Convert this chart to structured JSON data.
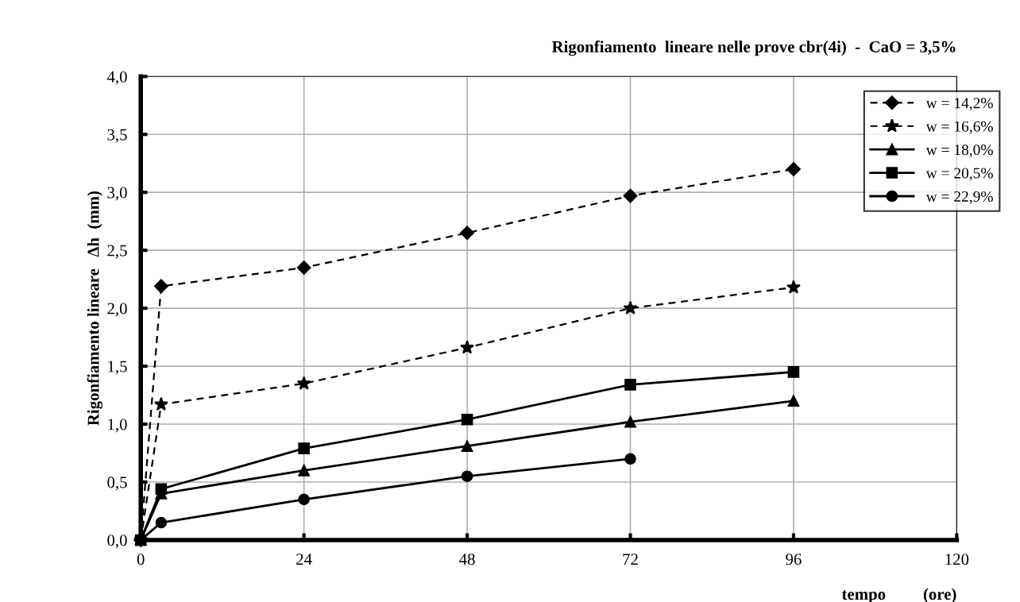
{
  "chart_data": {
    "type": "line",
    "title": "Rigonfiamento  lineare nelle prove cbr(4i)  -  CaO = 3,5%",
    "xlabel": "tempo         (ore)",
    "ylabel": "Rigonfiamento lineare   Δh  (mm)",
    "xlim": [
      0,
      120
    ],
    "xticks": [
      0,
      24,
      48,
      72,
      96,
      120
    ],
    "ylim": [
      0,
      4
    ],
    "yticks": [
      {
        "value": 0,
        "label": "0,0"
      },
      {
        "value": 0.5,
        "label": "0,5"
      },
      {
        "value": 1,
        "label": "1,0"
      },
      {
        "value": 1.5,
        "label": "1,5"
      },
      {
        "value": 2,
        "label": "2,0"
      },
      {
        "value": 2.5,
        "label": "2,5"
      },
      {
        "value": 3,
        "label": "3,0"
      },
      {
        "value": 3.5,
        "label": "3,5"
      },
      {
        "value": 4,
        "label": "4,0"
      }
    ],
    "grid": true,
    "legend": "top right",
    "series": [
      {
        "name": "w = 14,2%",
        "color": "#000000",
        "marker": "diamond",
        "line_style": "dashed",
        "x": [
          0,
          3,
          24,
          48,
          72,
          96
        ],
        "values": [
          0,
          2.19,
          2.35,
          2.65,
          2.97,
          3.2
        ]
      },
      {
        "name": "w = 16,6%",
        "color": "#000000",
        "marker": "star",
        "line_style": "dashed",
        "x": [
          0,
          3,
          24,
          48,
          72,
          96
        ],
        "values": [
          0,
          1.17,
          1.35,
          1.66,
          2.0,
          2.18
        ]
      },
      {
        "name": "w = 18,0%",
        "color": "#000000",
        "marker": "triangle",
        "line_style": "solid",
        "x": [
          0,
          3,
          24,
          48,
          72,
          96
        ],
        "values": [
          0,
          0.4,
          0.6,
          0.81,
          1.02,
          1.2
        ]
      },
      {
        "name": "w = 20,5%",
        "color": "#000000",
        "marker": "square",
        "line_style": "solid",
        "x": [
          0,
          3,
          24,
          48,
          72,
          96
        ],
        "values": [
          0,
          0.44,
          0.79,
          1.04,
          1.34,
          1.45
        ]
      },
      {
        "name": "w = 22,9%",
        "color": "#000000",
        "marker": "circle",
        "line_style": "solid",
        "x": [
          0,
          3,
          24,
          48,
          72
        ],
        "values": [
          0,
          0.15,
          0.35,
          0.55,
          0.7
        ]
      }
    ]
  }
}
